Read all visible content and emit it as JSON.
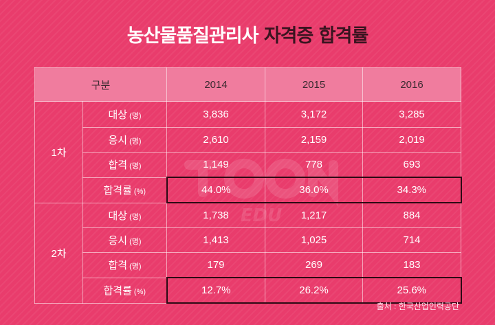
{
  "title": {
    "part1": "농산물품질관리사",
    "part2": "자격증 합격률"
  },
  "table": {
    "header": {
      "category": "구분",
      "years": [
        "2014",
        "2015",
        "2016"
      ]
    },
    "groups": [
      {
        "stage": "1차",
        "rows": [
          {
            "label": "대상",
            "unit": "(명)",
            "values": [
              "3,836",
              "3,172",
              "3,285"
            ]
          },
          {
            "label": "응시",
            "unit": "(명)",
            "values": [
              "2,610",
              "2,159",
              "2,019"
            ]
          },
          {
            "label": "합격",
            "unit": "(명)",
            "values": [
              "1,149",
              "778",
              "693"
            ]
          },
          {
            "label": "합격률",
            "unit": "(%)",
            "values": [
              "44.0%",
              "36.0%",
              "34.3%"
            ]
          }
        ]
      },
      {
        "stage": "2차",
        "rows": [
          {
            "label": "대상",
            "unit": "(명)",
            "values": [
              "1,738",
              "1,217",
              "884"
            ]
          },
          {
            "label": "응시",
            "unit": "(명)",
            "values": [
              "1,413",
              "1,025",
              "714"
            ]
          },
          {
            "label": "합격",
            "unit": "(명)",
            "values": [
              "179",
              "269",
              "183"
            ]
          },
          {
            "label": "합격률",
            "unit": "(%)",
            "values": [
              "12.7%",
              "26.2%",
              "25.6%"
            ]
          }
        ]
      }
    ]
  },
  "source": "출처 : 한국산업인력공단",
  "watermark": {
    "text": "EDU"
  }
}
